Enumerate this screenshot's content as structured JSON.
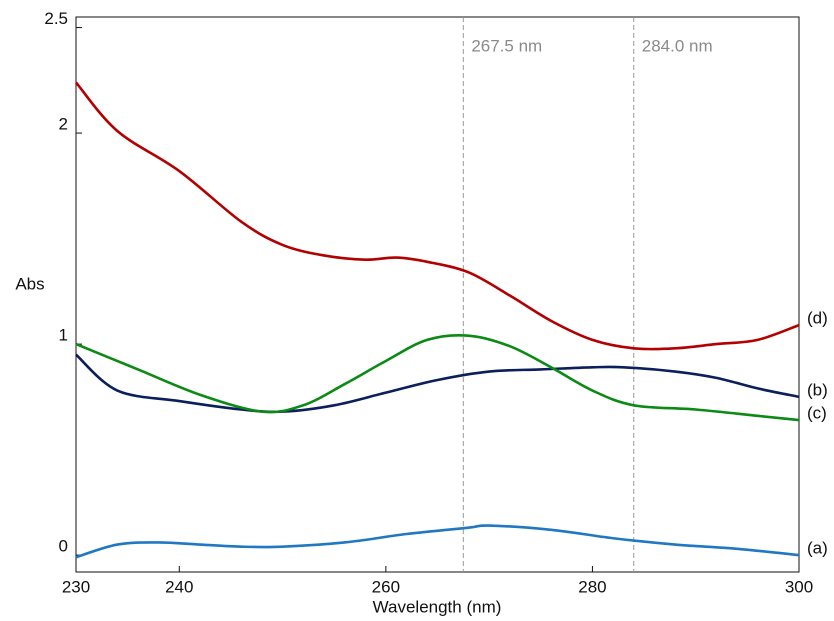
{
  "chart_data": {
    "type": "line",
    "x_label": "Wavelength (nm)",
    "y_label": "Abs",
    "xlim": [
      230,
      300
    ],
    "xticks": [
      230,
      240,
      260,
      280,
      300
    ],
    "ylim": [
      -0.08,
      2.55
    ],
    "yticks": [
      0,
      1,
      2,
      2.5
    ],
    "vlines": [
      {
        "x": 267.5,
        "label": "267.5 nm"
      },
      {
        "x": 284.0,
        "label": "284.0 nm"
      }
    ],
    "series": [
      {
        "name": "(a)",
        "color": "#1f78c1",
        "x": [
          230,
          234,
          238,
          242,
          246,
          250,
          256,
          262,
          268,
          270,
          276,
          282,
          288,
          294,
          300
        ],
        "values": [
          -0.01,
          0.05,
          0.06,
          0.05,
          0.04,
          0.04,
          0.06,
          0.1,
          0.13,
          0.14,
          0.12,
          0.08,
          0.05,
          0.03,
          0.0
        ]
      },
      {
        "name": "(b)",
        "color": "#0b1f5c",
        "x": [
          230,
          234,
          240,
          246,
          250,
          255,
          260,
          265,
          270,
          275,
          280,
          283,
          288,
          292,
          296,
          300
        ],
        "values": [
          0.95,
          0.78,
          0.73,
          0.69,
          0.68,
          0.71,
          0.77,
          0.83,
          0.87,
          0.88,
          0.89,
          0.89,
          0.87,
          0.84,
          0.79,
          0.75
        ]
      },
      {
        "name": "(c)",
        "color": "#0b8a14",
        "x": [
          230,
          236,
          242,
          248,
          252,
          256,
          260,
          264,
          268,
          272,
          276,
          280,
          284,
          290,
          296,
          300
        ],
        "values": [
          1.0,
          0.88,
          0.76,
          0.68,
          0.71,
          0.81,
          0.92,
          1.02,
          1.04,
          0.99,
          0.89,
          0.78,
          0.71,
          0.69,
          0.66,
          0.64
        ]
      },
      {
        "name": "(d)",
        "color": "#b30000",
        "x": [
          230,
          234,
          240,
          246,
          250,
          254,
          258,
          261,
          264,
          268,
          272,
          276,
          280,
          284,
          288,
          292,
          296,
          300
        ],
        "values": [
          2.24,
          2.01,
          1.82,
          1.58,
          1.47,
          1.42,
          1.4,
          1.41,
          1.39,
          1.34,
          1.23,
          1.11,
          1.02,
          0.98,
          0.98,
          1.0,
          1.02,
          1.09
        ]
      }
    ]
  }
}
